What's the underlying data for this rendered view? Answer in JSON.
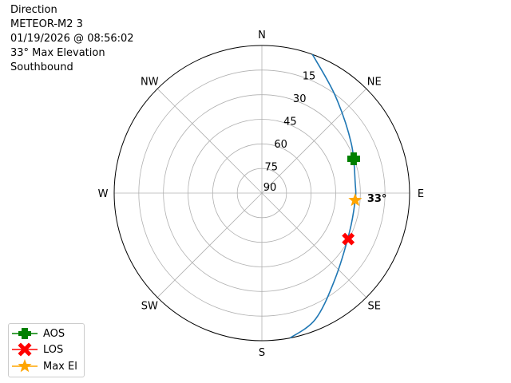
{
  "chart_data": {
    "type": "polar",
    "title_lines": [
      "Direction",
      "METEOR-M2 3",
      "01/19/2026 @ 08:56:02",
      "33° Max Elevation",
      "Southbound"
    ],
    "direction_labels": [
      "N",
      "NE",
      "E",
      "SE",
      "S",
      "SW",
      "W",
      "NW"
    ],
    "radial_tick_labels": [
      "15",
      "30",
      "45",
      "60",
      "75",
      "90"
    ],
    "radial_ticks": [
      15,
      30,
      45,
      60,
      75,
      90
    ],
    "radial_range": [
      90,
      0
    ],
    "grid": true,
    "track": {
      "color": "#1f77b4",
      "azimuth": [
        20,
        37,
        61,
        84,
        94,
        114,
        140,
        157,
        169
      ],
      "elevation": [
        0,
        15.7,
        27.7,
        32.8,
        33,
        31.6,
        21,
        6.5,
        0
      ]
    },
    "markers": [
      {
        "name": "AOS",
        "azimuth": 69.5,
        "elevation": 30.3,
        "color": "#008000",
        "symbol": "plus"
      },
      {
        "name": "LOS",
        "azimuth": 118,
        "elevation": 30.4,
        "color": "#ff0000",
        "symbol": "x"
      },
      {
        "name": "Max El",
        "azimuth": 94.4,
        "elevation": 33,
        "color": "#ffa500",
        "symbol": "star"
      }
    ],
    "annotation": "33°",
    "legend_placement": "bottom-left"
  }
}
